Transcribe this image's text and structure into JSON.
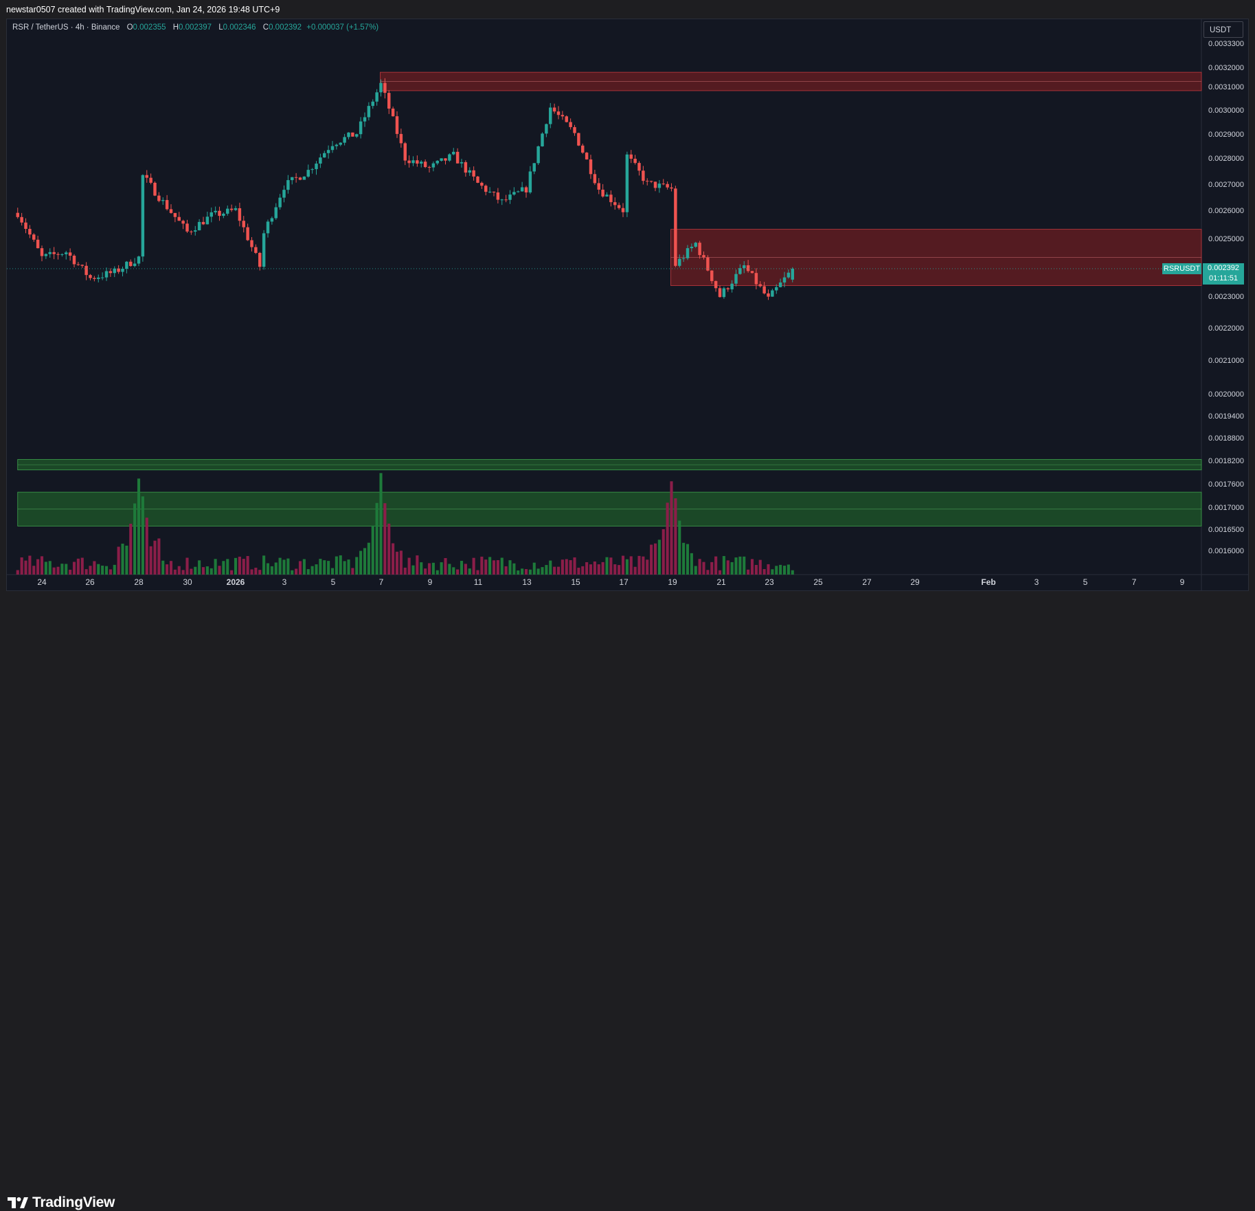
{
  "header": {
    "attribution": "newstar0507 created with TradingView.com, Jan 24, 2026 19:48 UTC+9"
  },
  "legend": {
    "symbol": "RSR / TetherUS · 4h · Binance",
    "o_label": "O",
    "o_value": "0.002355",
    "h_label": "H",
    "h_value": "0.002397",
    "l_label": "L",
    "l_value": "0.002346",
    "c_label": "C",
    "c_value": "0.002392",
    "change": "+0.000037 (+1.57%)"
  },
  "currency_button": "USDT",
  "last_price": {
    "symbol": "RSRUSDT",
    "price": "0.002392",
    "countdown": "01:11:51"
  },
  "footer": {
    "brand": "TradingView"
  },
  "colors": {
    "up": "#26a69a",
    "down": "#ef5350",
    "vol_up": "#1e7a3a",
    "vol_down": "#8b1e49",
    "resistance_zone": "#6b1e22",
    "support_zone": "#1f5a29"
  },
  "chart_data": {
    "type": "candlestick",
    "symbol": "RSRUSDT",
    "timeframe": "4h",
    "exchange": "Binance",
    "y_ticks": [
      "0.0033300",
      "0.0032000",
      "0.0031000",
      "0.0030000",
      "0.0029000",
      "0.0028000",
      "0.0027000",
      "0.0026000",
      "0.0025000",
      "0.0024000",
      "0.0023000",
      "0.0022000",
      "0.0021000",
      "0.0020000",
      "0.0019400",
      "0.0018800",
      "0.0018200",
      "0.0017600",
      "0.0017000",
      "0.0016500",
      "0.0016000"
    ],
    "y_scale": "logarithmic",
    "x_ticks": [
      "24",
      "26",
      "28",
      "30",
      "2026",
      "3",
      "5",
      "7",
      "9",
      "11",
      "13",
      "15",
      "17",
      "19",
      "21",
      "23",
      "25",
      "27",
      "29",
      "Feb",
      "3",
      "5",
      "7",
      "9"
    ],
    "price_path": [
      [
        "Dec 23",
        0.00259
      ],
      [
        "Dec 24",
        0.00243
      ],
      [
        "Dec 25",
        0.00245
      ],
      [
        "Dec 26",
        0.00236
      ],
      [
        "Dec 27",
        0.00238
      ],
      [
        "Dec 28",
        0.00243
      ],
      [
        "Dec 28",
        0.00275
      ],
      [
        "Dec 29",
        0.00263
      ],
      [
        "Dec 30",
        0.00252
      ],
      [
        "Dec 31",
        0.00258
      ],
      [
        "Jan 1",
        0.0026
      ],
      [
        "Jan 2",
        0.0024
      ],
      [
        "Jan 2",
        0.00248
      ],
      [
        "Jan 3",
        0.00269
      ],
      [
        "Jan 4",
        0.00275
      ],
      [
        "Jan 5",
        0.00286
      ],
      [
        "Jan 6",
        0.0029
      ],
      [
        "Jan 7",
        0.00311
      ],
      [
        "Jan 8",
        0.0028
      ],
      [
        "Jan 9",
        0.00276
      ],
      [
        "Jan 10",
        0.00281
      ],
      [
        "Jan 11",
        0.0027
      ],
      [
        "Jan 12",
        0.00263
      ],
      [
        "Jan 13",
        0.00268
      ],
      [
        "Jan 14",
        0.00301
      ],
      [
        "Jan 15",
        0.0029
      ],
      [
        "Jan 16",
        0.00268
      ],
      [
        "Jan 17",
        0.0026
      ],
      [
        "Jan 17",
        0.00283
      ],
      [
        "Jan 18",
        0.0027
      ],
      [
        "Jan 19",
        0.00268
      ],
      [
        "Jan 19",
        0.00239
      ],
      [
        "Jan 20",
        0.00248
      ],
      [
        "Jan 21",
        0.0023
      ],
      [
        "Jan 22",
        0.0024
      ],
      [
        "Jan 23",
        0.00229
      ],
      [
        "Jan 24",
        0.00239
      ]
    ],
    "zones": [
      {
        "kind": "resistance",
        "from": "Jan 7",
        "low": 0.003082,
        "high": 0.003164
      },
      {
        "kind": "resistance",
        "from": "Jan 19",
        "low": 0.002335,
        "high": 0.00253
      },
      {
        "kind": "support",
        "from": "Dec 23",
        "low": 0.001796,
        "high": 0.001823
      },
      {
        "kind": "support",
        "from": "Dec 23",
        "low": 0.001658,
        "high": 0.00174
      }
    ],
    "volume_spikes": [
      "Dec 28",
      "Jan 7",
      "Jan 19"
    ]
  }
}
